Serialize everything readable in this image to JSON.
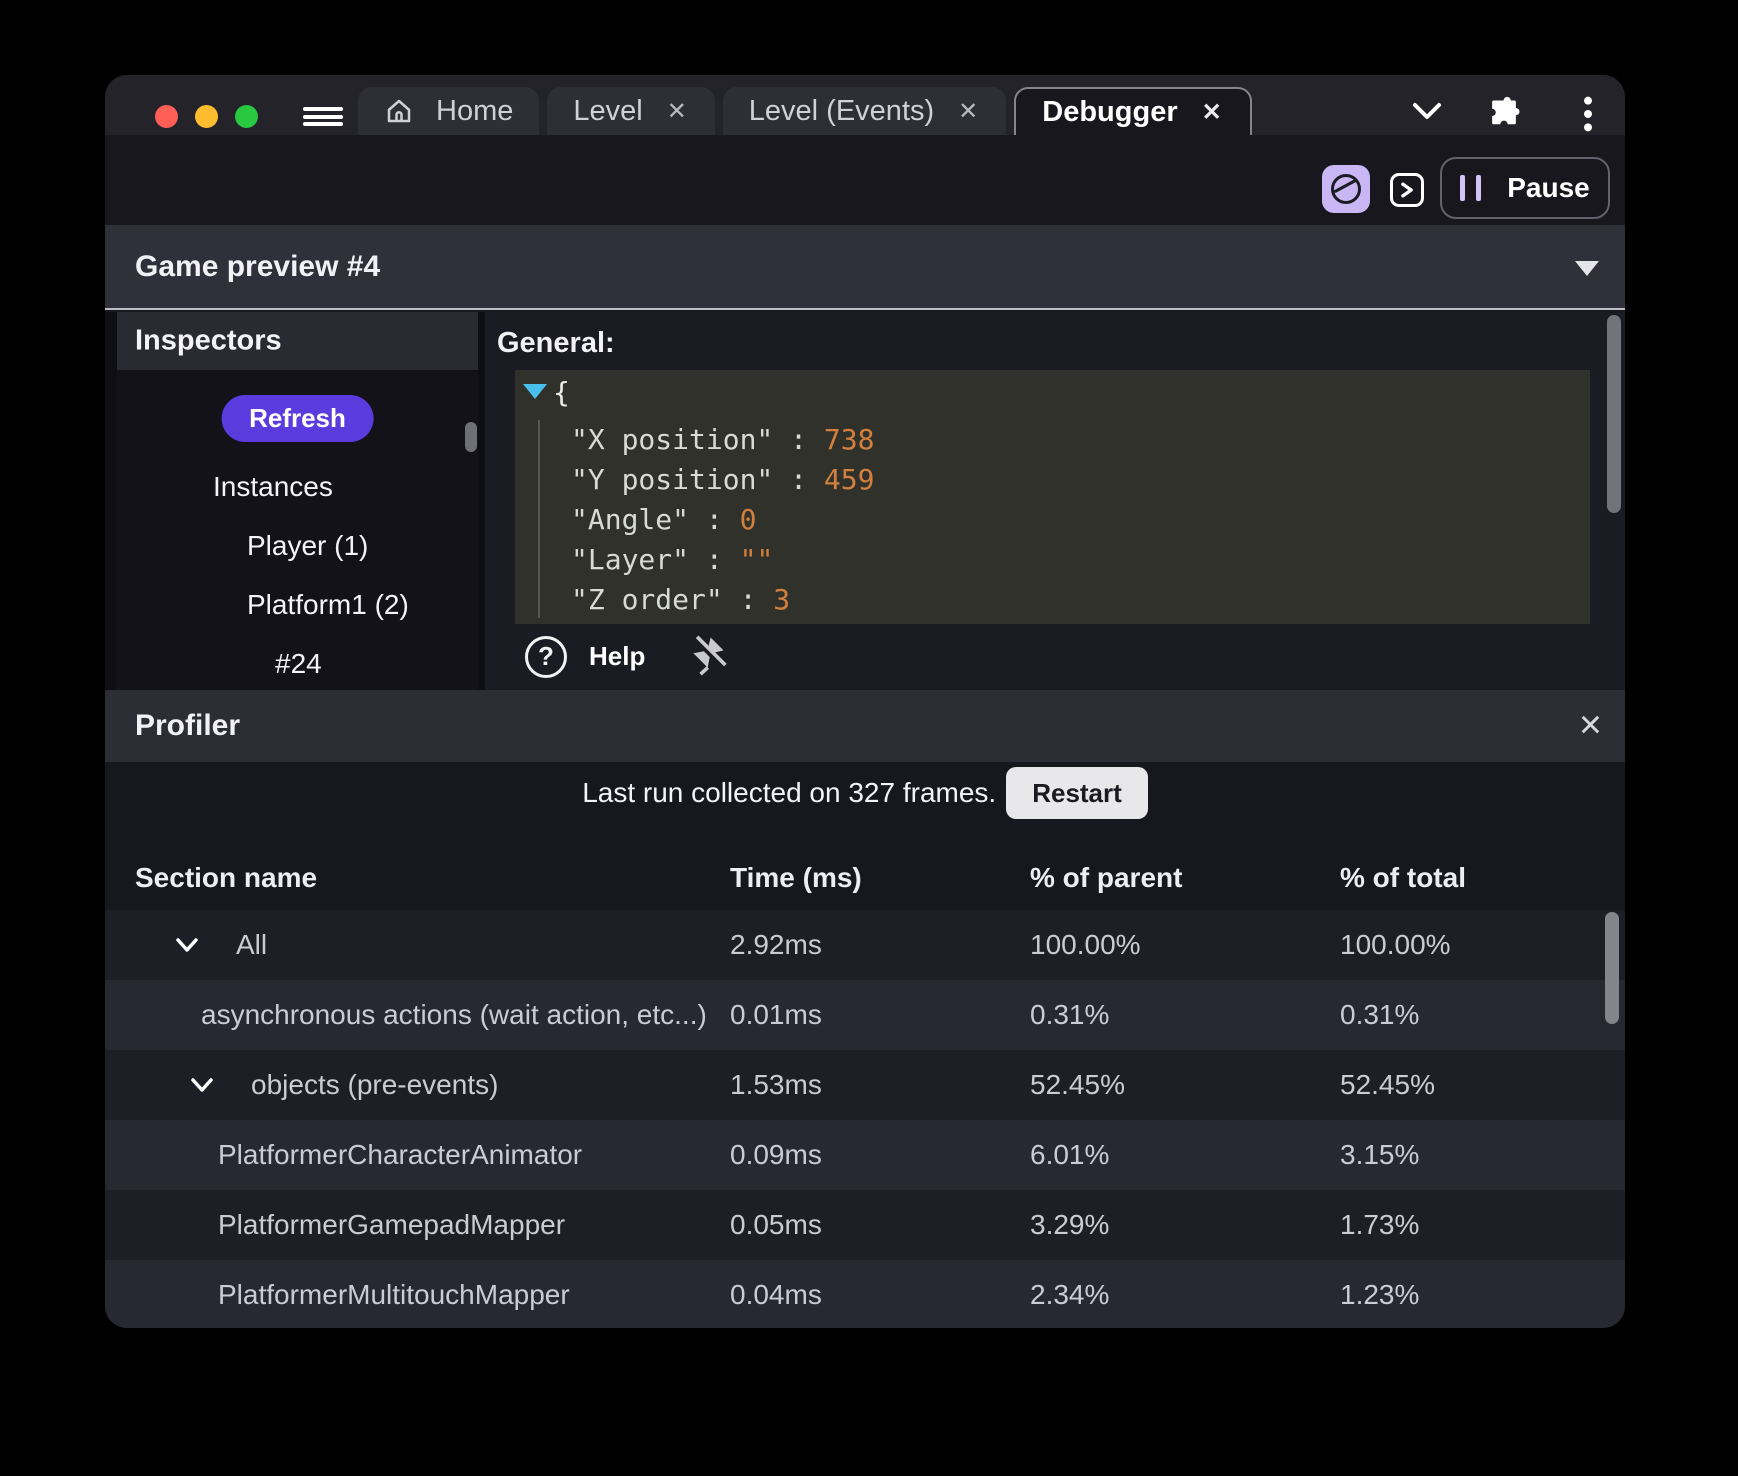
{
  "titlebar": {
    "tabs": [
      {
        "label": "Home",
        "closable": false,
        "active": false,
        "has_home_icon": true
      },
      {
        "label": "Level",
        "closable": true,
        "active": false,
        "has_home_icon": false
      },
      {
        "label": "Level (Events)",
        "closable": true,
        "active": false,
        "has_home_icon": false
      },
      {
        "label": "Debugger",
        "closable": true,
        "active": true,
        "has_home_icon": false
      }
    ],
    "close_glyph": "✕"
  },
  "toolbar": {
    "pause_label": "Pause"
  },
  "game_preview": {
    "title": "Game preview #4"
  },
  "inspectors": {
    "title": "Inspectors",
    "refresh_label": "Refresh",
    "tree": [
      {
        "label": "Instances",
        "depth": 0
      },
      {
        "label": "Player (1)",
        "depth": 1
      },
      {
        "label": "Platform1 (2)",
        "depth": 1
      },
      {
        "label": "#24",
        "depth": 2
      }
    ]
  },
  "general": {
    "label": "General:",
    "open_brace": "{",
    "entries": [
      {
        "key": "X position",
        "value": "738"
      },
      {
        "key": "Y position",
        "value": "459"
      },
      {
        "key": "Angle",
        "value": "0"
      },
      {
        "key": "Layer",
        "value": "\"\""
      },
      {
        "key": "Z order",
        "value": "3"
      }
    ],
    "help_label": "Help"
  },
  "profiler": {
    "title": "Profiler",
    "close_glyph": "✕",
    "status_text": "Last run collected on 327 frames.",
    "restart_label": "Restart",
    "table": {
      "headers": [
        "Section name",
        "Time (ms)",
        "% of parent",
        "% of total"
      ],
      "rows": [
        {
          "name": "All",
          "time": "2.92ms",
          "parent": "100.00%",
          "total": "100.00%",
          "depth": 0,
          "chevron": true
        },
        {
          "name": "asynchronous actions (wait action, etc...)",
          "time": "0.01ms",
          "parent": "0.31%",
          "total": "0.31%",
          "depth": 1,
          "chevron": false
        },
        {
          "name": "objects (pre-events)",
          "time": "1.53ms",
          "parent": "52.45%",
          "total": "52.45%",
          "depth": 1,
          "chevron": true
        },
        {
          "name": "PlatformerCharacterAnimator",
          "time": "0.09ms",
          "parent": "6.01%",
          "total": "3.15%",
          "depth": 2,
          "chevron": false
        },
        {
          "name": "PlatformerGamepadMapper",
          "time": "0.05ms",
          "parent": "3.29%",
          "total": "1.73%",
          "depth": 2,
          "chevron": false
        },
        {
          "name": "PlatformerMultitouchMapper",
          "time": "0.04ms",
          "parent": "2.34%",
          "total": "1.23%",
          "depth": 2,
          "chevron": false
        }
      ]
    }
  },
  "colors": {
    "accent_purple": "#5a3bdd",
    "lavender": "#c9b7f5",
    "value_orange": "#d3803e",
    "collapse_cyan": "#49c0eb",
    "traffic_red": "#ff5f57",
    "traffic_yellow": "#febc2e",
    "traffic_green": "#28c840"
  }
}
